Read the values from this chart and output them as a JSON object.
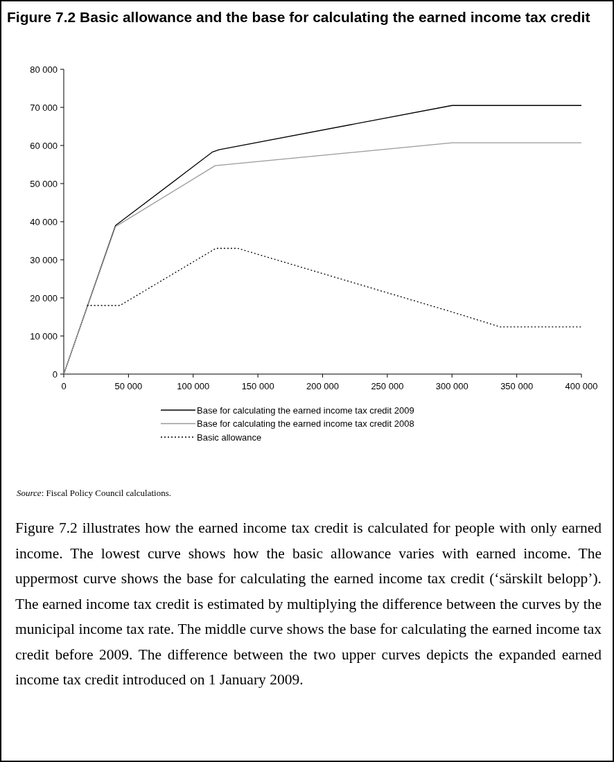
{
  "chart_data": {
    "type": "line",
    "title": "Figure 7.2 Basic allowance and the base for calculating the earned income tax credit",
    "x": [
      0,
      40000,
      115000,
      120000,
      300000,
      400000
    ],
    "series": [
      {
        "name": "Base for calculating the earned income tax credit 2009",
        "color": "#000000",
        "line_style": "solid",
        "values": [
          0,
          39000,
          58300,
          58900,
          70500,
          70500
        ]
      },
      {
        "name": "Base for calculating the earned income tax credit 2008",
        "color": "#999999",
        "line_style": "solid",
        "x": [
          0,
          40000,
          117000,
          300000,
          400000
        ],
        "values": [
          0,
          38700,
          54700,
          60700,
          60700
        ]
      },
      {
        "name": "Basic allowance",
        "color": "#000000",
        "line_style": "dotted",
        "x": [
          18000,
          43400,
          117600,
          134400,
          300000,
          337000,
          400000
        ],
        "values": [
          18000,
          18000,
          33000,
          33000,
          16300,
          12400,
          12400
        ]
      }
    ],
    "xlim": [
      0,
      400000
    ],
    "xticks": [
      {
        "value": 0,
        "label": "0"
      },
      {
        "value": 50000,
        "label": "50 000"
      },
      {
        "value": 100000,
        "label": "100 000"
      },
      {
        "value": 150000,
        "label": "150 000"
      },
      {
        "value": 200000,
        "label": "200 000"
      },
      {
        "value": 250000,
        "label": "250 000"
      },
      {
        "value": 300000,
        "label": "300 000"
      },
      {
        "value": 350000,
        "label": "350 000"
      },
      {
        "value": 400000,
        "label": "400 000"
      }
    ],
    "ylim": [
      0,
      80000
    ],
    "yticks": [
      {
        "value": 0,
        "label": "0"
      },
      {
        "value": 10000,
        "label": "10 000"
      },
      {
        "value": 20000,
        "label": "20 000"
      },
      {
        "value": 30000,
        "label": "30 000"
      },
      {
        "value": 40000,
        "label": "40 000"
      },
      {
        "value": 50000,
        "label": "50 000"
      },
      {
        "value": 60000,
        "label": "60 000"
      },
      {
        "value": 70000,
        "label": "70 000"
      },
      {
        "value": 80000,
        "label": "80 000"
      }
    ],
    "grid": false,
    "legend": "bottom",
    "marker": "none",
    "annotations": [
      "Source: Fiscal Policy Council calculations.",
      "Figure 7.2 illustrates how the earned income tax credit is calculated for people with only earned income. The lowest curve shows how the basic allowance varies with earned income. The uppermost curve shows the base for calculating the earned income tax credit (‘särskilt belopp’). The earned income tax credit is estimated by multiplying the difference between the curves by the municipal income tax rate. The middle curve shows the base for calculating the earned income tax credit before 2009. The difference between the two upper curves depicts the expanded earned income tax credit introduced on 1 January 2009."
    ]
  }
}
